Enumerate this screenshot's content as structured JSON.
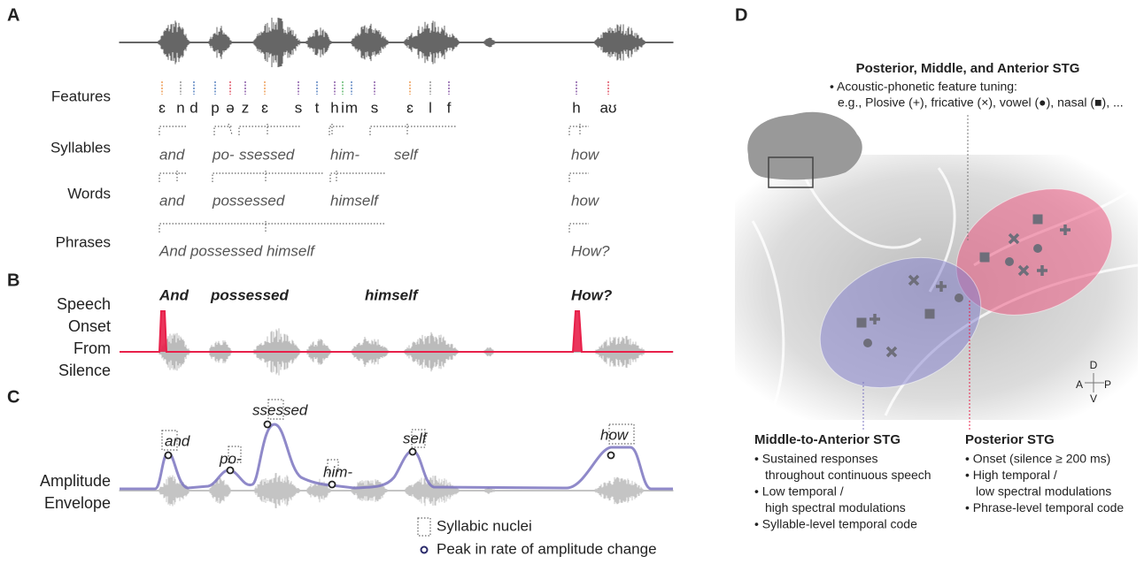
{
  "panel_a": {
    "label": "A",
    "rows": [
      "Features",
      "Syllables",
      "Words",
      "Phrases"
    ],
    "features": [
      {
        "text": "ɛ",
        "color": "#e8832a"
      },
      {
        "text": "n",
        "color": "#777777"
      },
      {
        "text": "d",
        "color": "#2f63b0"
      },
      {
        "text": "p",
        "color": "#2f63b0"
      },
      {
        "text": "ə",
        "color": "#d7263d"
      },
      {
        "text": "z",
        "color": "#6a2e8f"
      },
      {
        "text": "ɛ",
        "color": "#e8832a"
      },
      {
        "text": "s",
        "color": "#6a2e8f"
      },
      {
        "text": "t",
        "color": "#2f63b0"
      },
      {
        "text": "h",
        "color": "#6a2e8f"
      },
      {
        "text": "i",
        "color": "#3aa64a"
      },
      {
        "text": "m",
        "color": "#2f63b0"
      },
      {
        "text": "s",
        "color": "#6a2e8f"
      },
      {
        "text": "ɛ",
        "color": "#e8832a"
      },
      {
        "text": "l",
        "color": "#777777"
      },
      {
        "text": "f",
        "color": "#6a2e8f"
      },
      {
        "text": "h",
        "color": "#6a2e8f"
      },
      {
        "text": "aʊ",
        "color": "#d7263d"
      }
    ],
    "syllables": [
      "and",
      "po-",
      "ssessed",
      "him-",
      "self",
      "how"
    ],
    "words": [
      "and",
      "possessed",
      "himself",
      "how"
    ],
    "phrases": [
      "And possessed himself",
      "How?"
    ]
  },
  "panel_b": {
    "label": "B",
    "ylabel": [
      "Speech",
      "Onset",
      "From",
      "Silence"
    ],
    "words": [
      "And",
      "possessed",
      "himself",
      "How?"
    ]
  },
  "panel_c": {
    "label": "C",
    "ylabel": [
      "Amplitude",
      "Envelope"
    ],
    "syllables": [
      "and",
      "po-",
      "ssessed",
      "him-",
      "self",
      "how"
    ],
    "legend": [
      "Syllabic nuclei",
      "Peak in rate of amplitude change"
    ]
  },
  "panel_d": {
    "label": "D",
    "all_title": "Posterior, Middle, and Anterior STG",
    "all_lines": [
      "• Acoustic-phonetic feature tuning:",
      "e.g., Plosive (+), fricative (×), vowel (●), nasal (■), ..."
    ],
    "orientation": [
      "D",
      "A",
      "P",
      "V"
    ],
    "middle_title": "Middle-to-Anterior STG",
    "middle_lines": [
      "• Sustained responses",
      "throughout continuous speech",
      "• Low temporal /",
      "high spectral modulations",
      "• Syllable-level temporal code"
    ],
    "posterior_title": "Posterior STG",
    "posterior_lines": [
      "• Onset (silence ≥ 200 ms)",
      "• High temporal /",
      "low spectral modulations",
      "• Phrase-level temporal code"
    ]
  }
}
